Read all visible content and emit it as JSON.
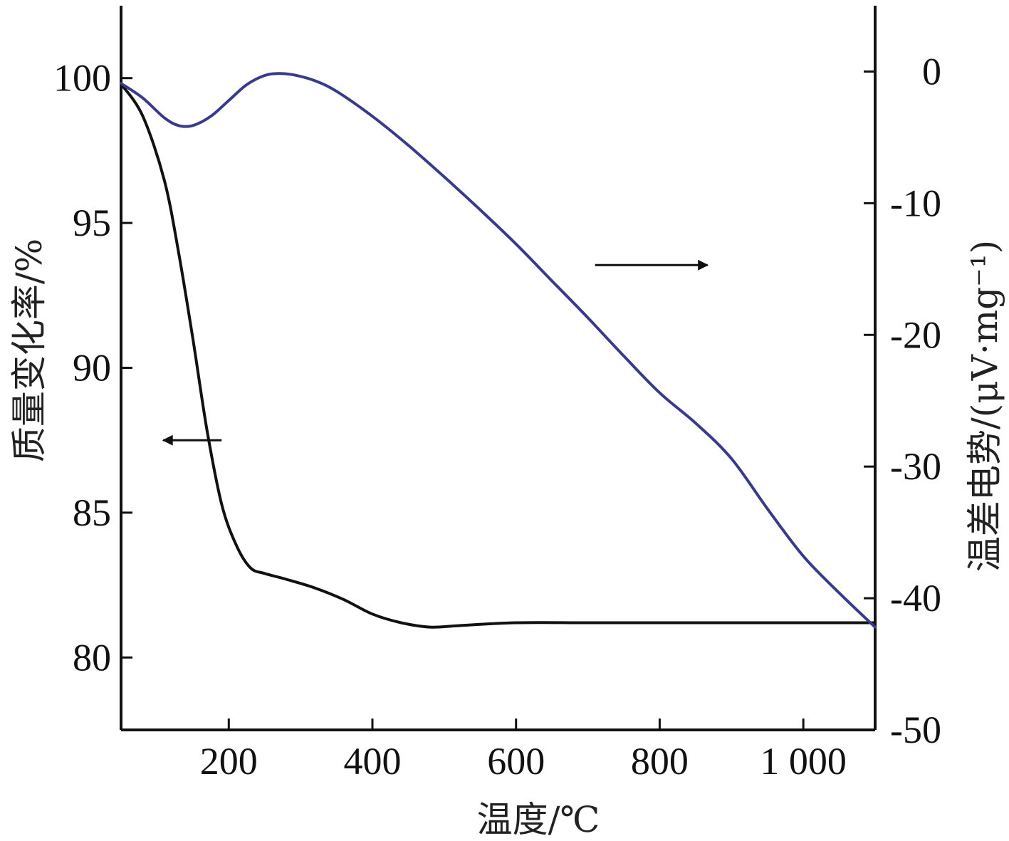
{
  "chart_data": {
    "type": "line",
    "xlabel": "温度/℃",
    "ylabel_left": "质量变化率/%",
    "ylabel_right": "温差电势/(μV·mg⁻¹)",
    "xlim": [
      50,
      1100
    ],
    "ylim_left": [
      77.5,
      102.5
    ],
    "ylim_right": [
      -50,
      5
    ],
    "x_ticks": [
      200,
      400,
      600,
      800,
      1000
    ],
    "x_tick_labels": [
      "200",
      "400",
      "600",
      "800",
      "1 000"
    ],
    "y_left_ticks": [
      80,
      85,
      90,
      95,
      100
    ],
    "y_left_tick_labels": [
      "80",
      "85",
      "90",
      "95",
      "100"
    ],
    "y_right_ticks": [
      -50,
      -40,
      -30,
      -20,
      -10,
      0
    ],
    "y_right_tick_labels": [
      "-50",
      "-40",
      "-30",
      "-20",
      "-10",
      "0"
    ],
    "grid": false,
    "series": [
      {
        "id": "tg",
        "axis": "left",
        "color": "#111111",
        "x": [
          50,
          80,
          110,
          130,
          150,
          170,
          190,
          210,
          230,
          250,
          280,
          320,
          360,
          400,
          440,
          480,
          520,
          600,
          700,
          800,
          900,
          1000,
          1100
        ],
        "y": [
          99.8,
          98.7,
          96.5,
          94.0,
          91.0,
          87.8,
          85.3,
          83.9,
          83.1,
          82.9,
          82.7,
          82.4,
          82.0,
          81.5,
          81.2,
          81.05,
          81.1,
          81.2,
          81.2,
          81.2,
          81.2,
          81.2,
          81.2
        ]
      },
      {
        "id": "dta",
        "axis": "right",
        "color": "#3a3a8c",
        "x": [
          50,
          80,
          110,
          130,
          150,
          175,
          200,
          225,
          250,
          270,
          290,
          320,
          350,
          400,
          450,
          500,
          550,
          600,
          650,
          700,
          750,
          800,
          850,
          900,
          950,
          1000,
          1050,
          1100
        ],
        "y": [
          -0.9,
          -2.0,
          -3.5,
          -4.1,
          -4.1,
          -3.4,
          -2.2,
          -1.0,
          -0.3,
          -0.15,
          -0.25,
          -0.7,
          -1.5,
          -3.4,
          -5.6,
          -8.0,
          -10.5,
          -13.1,
          -15.9,
          -18.7,
          -21.6,
          -24.4,
          -26.7,
          -29.4,
          -33.2,
          -36.8,
          -39.6,
          -42.2
        ]
      }
    ],
    "annotations": [
      {
        "kind": "arrow",
        "direction": "left",
        "points_to_axis": "left",
        "x": 190,
        "y": 87.5
      },
      {
        "kind": "arrow",
        "direction": "right",
        "points_to_axis": "right",
        "x": 710,
        "y": -14.7
      }
    ]
  }
}
